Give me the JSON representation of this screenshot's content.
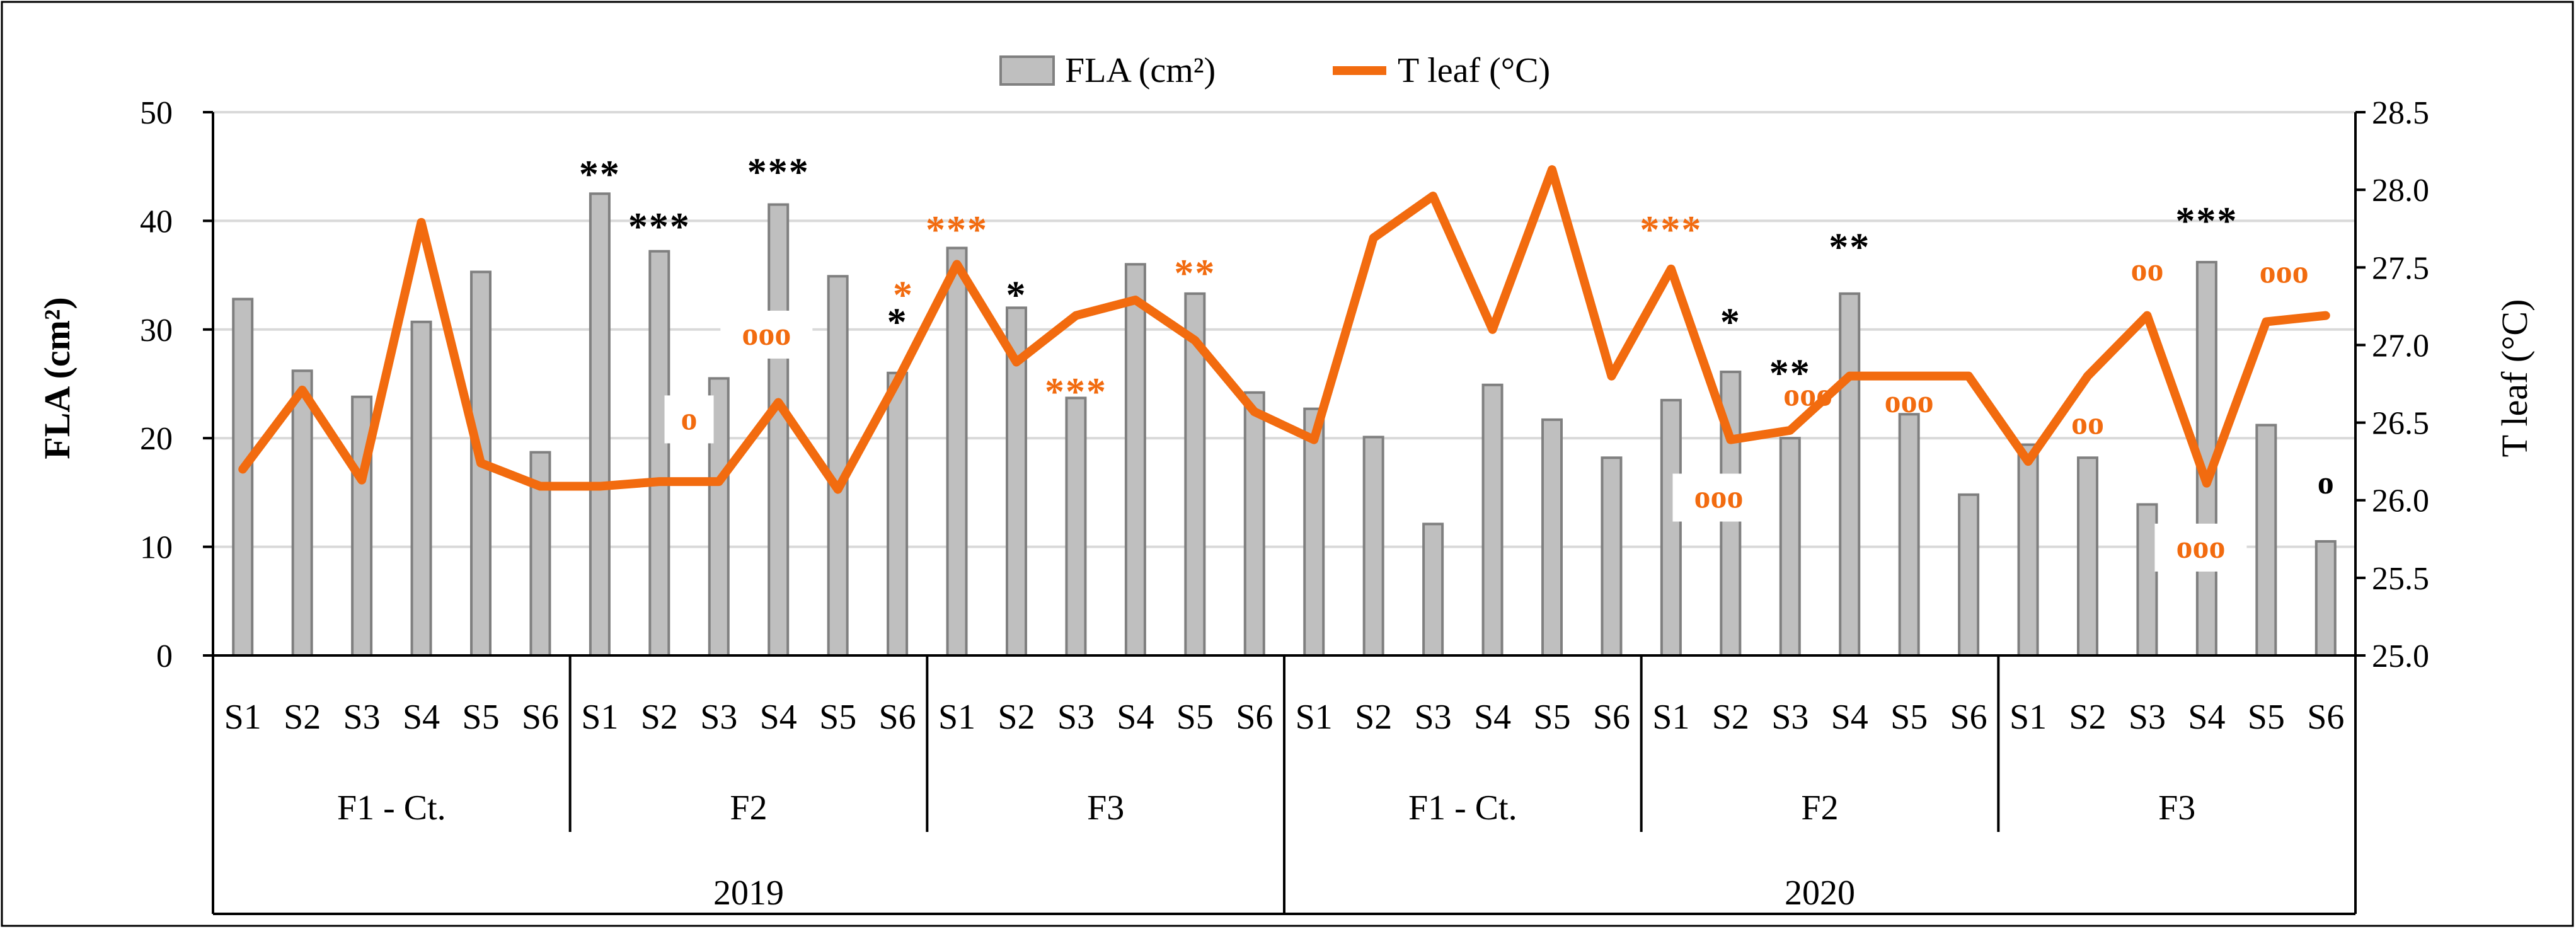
{
  "chart_data": {
    "type": "bar+line",
    "years": [
      "2019",
      "2020"
    ],
    "groups": [
      "F1 - Ct.",
      "F2",
      "F3",
      "F1 - Ct.",
      "F2",
      "F3"
    ],
    "categories": [
      "S1",
      "S2",
      "S3",
      "S4",
      "S5",
      "S6",
      "S1",
      "S2",
      "S3",
      "S4",
      "S5",
      "S6",
      "S1",
      "S2",
      "S3",
      "S4",
      "S5",
      "S6",
      "S1",
      "S2",
      "S3",
      "S4",
      "S5",
      "S6",
      "S1",
      "S2",
      "S3",
      "S4",
      "S5",
      "S6",
      "S1",
      "S2",
      "S3",
      "S4",
      "S5",
      "S6"
    ],
    "series": [
      {
        "name": "FLA (cm²)",
        "kind": "bar",
        "axis": "left",
        "color": "#bfbfbf",
        "values": [
          32.8,
          26.2,
          23.8,
          30.7,
          35.3,
          18.7,
          42.5,
          37.2,
          25.5,
          41.5,
          34.9,
          26.0,
          37.5,
          32.0,
          23.7,
          36.0,
          33.3,
          24.2,
          22.7,
          20.1,
          12.1,
          24.9,
          21.7,
          18.2,
          23.5,
          26.1,
          20.0,
          33.3,
          22.2,
          14.8,
          19.4,
          18.2,
          13.9,
          36.2,
          21.2,
          10.5
        ]
      },
      {
        "name": "T leaf (°C)",
        "kind": "line",
        "axis": "right",
        "color": "#f26b0f",
        "values": [
          26.2,
          26.71,
          26.13,
          27.79,
          26.24,
          26.09,
          26.09,
          26.12,
          26.12,
          26.63,
          26.07,
          26.77,
          27.52,
          26.89,
          27.19,
          27.29,
          27.03,
          26.57,
          26.39,
          27.69,
          27.96,
          27.1,
          28.13,
          26.8,
          27.49,
          26.39,
          26.45,
          26.8,
          26.8,
          26.8,
          26.25,
          26.8,
          27.19,
          26.11,
          27.15,
          27.19
        ]
      }
    ],
    "y_left": {
      "label": "FLA (cm²)",
      "min": 0,
      "max": 50,
      "step": 10,
      "ticks": [
        "0",
        "10",
        "20",
        "30",
        "40",
        "50"
      ]
    },
    "y_right": {
      "label": "T leaf (°C)",
      "min": 25,
      "max": 28.5,
      "step": 0.5,
      "ticks": [
        "25.0",
        "25.5",
        "26.0",
        "26.5",
        "27.0",
        "27.5",
        "28.0",
        "28.5"
      ]
    },
    "legend_position": "top-center",
    "annotations": [
      {
        "index": 6,
        "text": "**",
        "color": "black",
        "y_data": 44.6,
        "axis": "left"
      },
      {
        "index": 7,
        "text": "***",
        "color": "black",
        "y_data": 39.8,
        "axis": "left"
      },
      {
        "index": 9,
        "text": "***",
        "color": "black",
        "y_data": 44.8,
        "axis": "left"
      },
      {
        "index": 11,
        "text": "*",
        "color": "black",
        "y_data": 31.0,
        "axis": "left"
      },
      {
        "index": 11,
        "text": "*",
        "color": "orange",
        "y_data": 33.5,
        "axis": "left",
        "dx": 0.1
      },
      {
        "index": 12,
        "text": "***",
        "color": "orange",
        "y_data": 39.5,
        "axis": "left"
      },
      {
        "index": 13,
        "text": "*",
        "color": "black",
        "y_data": 33.5,
        "axis": "left"
      },
      {
        "index": 14,
        "text": "***",
        "color": "orange",
        "y_data": 24.6,
        "axis": "left"
      },
      {
        "index": 16,
        "text": "**",
        "color": "orange",
        "y_data": 35.5,
        "axis": "left"
      },
      {
        "index": 24,
        "text": "***",
        "color": "orange",
        "y_data": 39.5,
        "axis": "left"
      },
      {
        "index": 25,
        "text": "*",
        "color": "black",
        "y_data": 31.0,
        "axis": "left"
      },
      {
        "index": 26,
        "text": "**",
        "color": "black",
        "y_data": 26.3,
        "axis": "left"
      },
      {
        "index": 26,
        "text": "ooo",
        "color": "orange",
        "y_data": 23.0,
        "axis": "left",
        "dx": 0.3
      },
      {
        "index": 28,
        "text": "ooo",
        "color": "orange",
        "y_data": 22.4,
        "axis": "left"
      },
      {
        "index": 27,
        "text": "**",
        "color": "black",
        "y_data": 37.9,
        "axis": "left"
      },
      {
        "index": 32,
        "text": "oo",
        "color": "orange",
        "y_data": 34.5,
        "axis": "left"
      },
      {
        "index": 31,
        "text": "oo",
        "color": "orange",
        "y_data": 20.4,
        "axis": "left"
      },
      {
        "index": 33,
        "text": "***",
        "color": "black",
        "y_data": 40.3,
        "axis": "left"
      },
      {
        "index": 34,
        "text": "ooo",
        "color": "orange",
        "y_data": 34.3,
        "axis": "left",
        "dx": 0.3
      },
      {
        "index": 35,
        "text": "o",
        "color": "black",
        "y_data": 14.9,
        "axis": "left"
      },
      {
        "index": 8,
        "text": "o",
        "color": "orange",
        "y_data": 20.8,
        "axis": "left",
        "dx": -0.5,
        "boxed": true
      },
      {
        "index": 9,
        "text": "ooo",
        "color": "orange",
        "y_data": 28.6,
        "axis": "left",
        "dx": -0.2,
        "boxed": true
      },
      {
        "index": 25,
        "text": "ooo",
        "color": "orange",
        "y_data": 13.6,
        "axis": "left",
        "dx": -0.2,
        "boxed": true
      },
      {
        "index": 33,
        "text": "ooo",
        "color": "orange",
        "y_data": 9.0,
        "axis": "left",
        "dx": -0.1,
        "boxed": true
      }
    ]
  }
}
